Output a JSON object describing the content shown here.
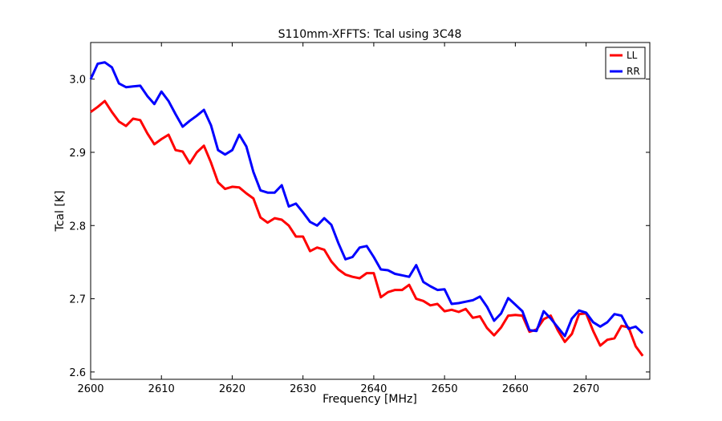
{
  "chart_data": {
    "type": "line",
    "title": "S110mm-XFFTS: Tcal using 3C48",
    "xlabel": "Frequency [MHz]",
    "ylabel": "Tcal [K]",
    "xlim": [
      2600,
      2679
    ],
    "ylim": [
      2.59,
      3.05
    ],
    "xticks": [
      2600,
      2610,
      2620,
      2630,
      2640,
      2650,
      2660,
      2670
    ],
    "xtick_labels": [
      "2600",
      "2610",
      "2620",
      "2630",
      "2640",
      "2650",
      "2660",
      "2670"
    ],
    "yticks": [
      2.6,
      2.7,
      2.8,
      2.9,
      3.0
    ],
    "ytick_labels": [
      "2.6",
      "2.7",
      "2.8",
      "2.9",
      "3.0"
    ],
    "legend_position": "top-right",
    "grid": false,
    "series": [
      {
        "name": "LL",
        "color": "#ff0000",
        "x": [
          2600,
          2601,
          2602,
          2603,
          2604,
          2605,
          2606,
          2607,
          2608,
          2609,
          2610,
          2611,
          2612,
          2613,
          2614,
          2615,
          2616,
          2617,
          2618,
          2619,
          2620,
          2621,
          2622,
          2623,
          2624,
          2625,
          2626,
          2627,
          2628,
          2629,
          2630,
          2631,
          2632,
          2633,
          2634,
          2635,
          2636,
          2637,
          2638,
          2639,
          2640,
          2641,
          2642,
          2643,
          2644,
          2645,
          2646,
          2647,
          2648,
          2649,
          2650,
          2651,
          2652,
          2653,
          2654,
          2655,
          2656,
          2657,
          2658,
          2659,
          2660,
          2661,
          2662,
          2663,
          2664,
          2665,
          2666,
          2667,
          2668,
          2669,
          2670,
          2671,
          2672,
          2673,
          2674,
          2675,
          2676,
          2677,
          2678
        ],
        "values": [
          2.955,
          2.962,
          2.97,
          2.955,
          2.942,
          2.936,
          2.946,
          2.944,
          2.926,
          2.911,
          2.918,
          2.924,
          2.903,
          2.901,
          2.885,
          2.9,
          2.909,
          2.886,
          2.859,
          2.85,
          2.853,
          2.852,
          2.844,
          2.837,
          2.811,
          2.804,
          2.81,
          2.808,
          2.8,
          2.785,
          2.785,
          2.765,
          2.77,
          2.767,
          2.751,
          2.74,
          2.733,
          2.73,
          2.728,
          2.735,
          2.735,
          2.702,
          2.709,
          2.712,
          2.712,
          2.719,
          2.7,
          2.697,
          2.691,
          2.693,
          2.683,
          2.685,
          2.682,
          2.686,
          2.674,
          2.676,
          2.66,
          2.65,
          2.661,
          2.677,
          2.678,
          2.677,
          2.655,
          2.658,
          2.672,
          2.677,
          2.657,
          2.641,
          2.652,
          2.679,
          2.68,
          2.656,
          2.636,
          2.644,
          2.646,
          2.663,
          2.661,
          2.635,
          2.622
        ]
      },
      {
        "name": "RR",
        "color": "#0000ff",
        "x": [
          2600,
          2601,
          2602,
          2603,
          2604,
          2605,
          2606,
          2607,
          2608,
          2609,
          2610,
          2611,
          2612,
          2613,
          2614,
          2615,
          2616,
          2617,
          2618,
          2619,
          2620,
          2621,
          2622,
          2623,
          2624,
          2625,
          2626,
          2627,
          2628,
          2629,
          2630,
          2631,
          2632,
          2633,
          2634,
          2635,
          2636,
          2637,
          2638,
          2639,
          2640,
          2641,
          2642,
          2643,
          2644,
          2645,
          2646,
          2647,
          2648,
          2649,
          2650,
          2651,
          2652,
          2653,
          2654,
          2655,
          2656,
          2657,
          2658,
          2659,
          2660,
          2661,
          2662,
          2663,
          2664,
          2665,
          2666,
          2667,
          2668,
          2669,
          2670,
          2671,
          2672,
          2673,
          2674,
          2675,
          2676,
          2677,
          2678
        ],
        "values": [
          3.0,
          3.021,
          3.023,
          3.016,
          2.994,
          2.989,
          2.99,
          2.991,
          2.977,
          2.966,
          2.983,
          2.97,
          2.952,
          2.935,
          2.943,
          2.95,
          2.958,
          2.937,
          2.903,
          2.897,
          2.903,
          2.924,
          2.908,
          2.873,
          2.848,
          2.845,
          2.845,
          2.855,
          2.826,
          2.83,
          2.818,
          2.805,
          2.8,
          2.81,
          2.801,
          2.776,
          2.754,
          2.757,
          2.77,
          2.772,
          2.757,
          2.74,
          2.739,
          2.734,
          2.732,
          2.73,
          2.746,
          2.723,
          2.717,
          2.712,
          2.713,
          2.693,
          2.694,
          2.696,
          2.698,
          2.703,
          2.689,
          2.67,
          2.68,
          2.701,
          2.692,
          2.683,
          2.657,
          2.656,
          2.683,
          2.673,
          2.661,
          2.649,
          2.673,
          2.684,
          2.681,
          2.668,
          2.662,
          2.668,
          2.679,
          2.677,
          2.659,
          2.662,
          2.653
        ]
      }
    ]
  }
}
